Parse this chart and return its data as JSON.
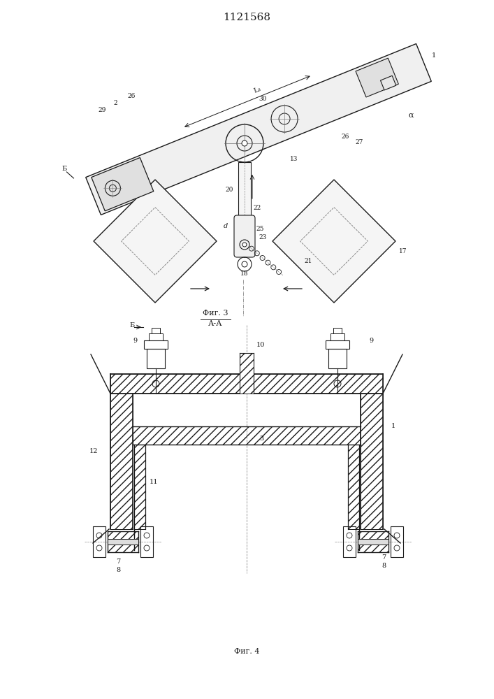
{
  "title": "1121568",
  "title_fontsize": 11,
  "fig3_label": "Фиг. 3",
  "fig4_label": "Фиг. 4",
  "aa_label": "А-А",
  "background_color": "#ffffff",
  "line_color": "#1a1a1a",
  "hatch_color": "#1a1a1a"
}
